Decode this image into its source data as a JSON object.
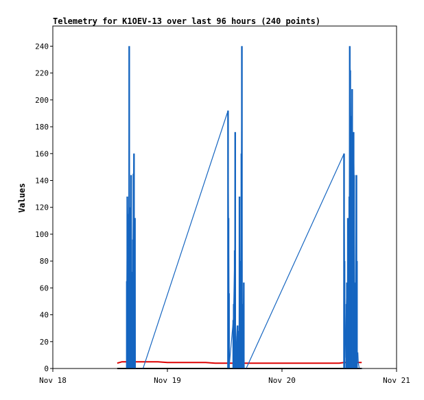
{
  "chart_data": {
    "type": "line",
    "title": "Telemetry for K1OEV-13 over last 96 hours (240 points)",
    "xlabel": "",
    "ylabel": "Values",
    "x_ticks": [
      "Nov 18",
      "Nov 19",
      "Nov 20",
      "Nov 21"
    ],
    "x_tick_hours": [
      0,
      24,
      48,
      72
    ],
    "xlim_hours": [
      0,
      72
    ],
    "y_ticks": [
      0,
      20,
      40,
      60,
      80,
      100,
      120,
      140,
      160,
      180,
      200,
      220,
      240
    ],
    "ylim": [
      0,
      255
    ],
    "grid": false,
    "legend": "none",
    "colors": {
      "blue": "#1565c0",
      "red": "#dd0000",
      "black": "#000000",
      "frame": "#000000"
    },
    "series": [
      {
        "style": "spikes",
        "color": "#1565c0",
        "x_hours": [
          15.5,
          15.6,
          15.7,
          15.8,
          15.9,
          16.0,
          16.1,
          16.2,
          16.3,
          16.4,
          16.5,
          16.6,
          16.7,
          16.8,
          16.9,
          17.0,
          17.1,
          17.2,
          17.3,
          17.4,
          17.5,
          17.6,
          17.7,
          17.8,
          17.9,
          18.0,
          18.1,
          18.2,
          18.3,
          18.4,
          18.5,
          18.6,
          18.7,
          18.8,
          18.9,
          36.7,
          36.8,
          36.9,
          37.0,
          37.8,
          37.9,
          38.1,
          38.2,
          38.3,
          38.4,
          38.5,
          38.6,
          38.7,
          38.8,
          38.9,
          39.0,
          39.1,
          39.2,
          39.3,
          39.4,
          39.5,
          39.6,
          39.7,
          39.8,
          39.9,
          40.0,
          40.1,
          40.2,
          40.3,
          40.4,
          40.5,
          61.0,
          61.1,
          61.2,
          61.5,
          61.6,
          61.7,
          61.8,
          61.9,
          62.0,
          62.1,
          62.2,
          62.3,
          62.4,
          62.5,
          62.6,
          62.7,
          62.8,
          62.9,
          63.0,
          63.1,
          63.2,
          63.3,
          63.4,
          63.5,
          63.6,
          63.7,
          63.8,
          63.9,
          64.0,
          64.1,
          64.2,
          64.3,
          64.4,
          64.5,
          64.6,
          64.7,
          64.8,
          64.9
        ],
        "values": [
          65,
          128,
          115,
          88,
          62,
          240,
          120,
          110,
          48,
          144,
          72,
          16,
          8,
          96,
          145,
          160,
          4,
          112,
          0,
          0,
          0,
          0,
          0,
          0,
          0,
          0,
          0,
          0,
          0,
          0,
          0,
          0,
          0,
          0,
          0,
          192,
          112,
          56,
          4,
          36,
          48,
          88,
          176,
          4,
          12,
          24,
          32,
          28,
          16,
          8,
          12,
          128,
          64,
          80,
          56,
          160,
          240,
          4,
          16,
          48,
          64,
          0,
          0,
          0,
          0,
          0,
          160,
          80,
          8,
          48,
          64,
          40,
          112,
          24,
          72,
          128,
          240,
          222,
          188,
          144,
          104,
          208,
          80,
          60,
          176,
          144,
          56,
          64,
          20,
          144,
          80,
          16,
          8,
          12,
          4,
          2,
          0,
          0,
          0,
          0,
          0,
          0,
          0,
          0
        ],
        "sticks": [
          [
            15.5,
            65
          ],
          [
            15.6,
            128
          ],
          [
            15.7,
            115
          ],
          [
            15.8,
            88
          ],
          [
            16.0,
            240
          ],
          [
            16.1,
            120
          ],
          [
            16.2,
            110
          ],
          [
            16.3,
            48
          ],
          [
            16.4,
            144
          ],
          [
            16.5,
            72
          ],
          [
            16.6,
            16
          ],
          [
            16.8,
            96
          ],
          [
            16.9,
            145
          ],
          [
            17.0,
            160
          ],
          [
            17.2,
            112
          ],
          [
            36.7,
            192
          ],
          [
            36.8,
            112
          ],
          [
            36.9,
            56
          ],
          [
            37.8,
            36
          ],
          [
            37.9,
            48
          ],
          [
            38.1,
            88
          ],
          [
            38.2,
            176
          ],
          [
            38.5,
            12
          ],
          [
            38.6,
            24
          ],
          [
            38.7,
            32
          ],
          [
            38.8,
            28
          ],
          [
            38.9,
            16
          ],
          [
            39.1,
            128
          ],
          [
            39.2,
            64
          ],
          [
            39.3,
            80
          ],
          [
            39.5,
            160
          ],
          [
            39.6,
            240
          ],
          [
            39.9,
            48
          ],
          [
            40.0,
            64
          ],
          [
            61.0,
            160
          ],
          [
            61.1,
            80
          ],
          [
            61.5,
            48
          ],
          [
            61.6,
            64
          ],
          [
            61.8,
            112
          ],
          [
            62.0,
            72
          ],
          [
            62.1,
            128
          ],
          [
            62.2,
            240
          ],
          [
            62.3,
            222
          ],
          [
            62.4,
            188
          ],
          [
            62.5,
            144
          ],
          [
            62.6,
            104
          ],
          [
            62.7,
            208
          ],
          [
            62.8,
            80
          ],
          [
            63.0,
            176
          ],
          [
            63.1,
            144
          ],
          [
            63.2,
            56
          ],
          [
            63.3,
            64
          ],
          [
            63.5,
            20
          ],
          [
            63.6,
            144
          ],
          [
            63.7,
            80
          ]
        ]
      },
      {
        "style": "line",
        "color": "#dd0000",
        "x_hours": [
          13.5,
          14,
          14.5,
          15,
          16,
          17,
          18,
          19,
          20,
          22,
          24,
          26,
          28,
          30,
          32,
          34,
          36,
          38,
          40,
          42,
          44,
          46,
          48,
          50,
          52,
          54,
          56,
          58,
          60,
          61,
          62,
          63,
          64,
          64.7
        ],
        "values": [
          4.0,
          4.5,
          5.0,
          5.0,
          5.0,
          5.0,
          5.0,
          5.0,
          5.0,
          5.0,
          4.5,
          4.5,
          4.5,
          4.5,
          4.5,
          4.0,
          4.0,
          4.0,
          4.0,
          4.0,
          4.0,
          4.0,
          4.0,
          4.0,
          4.0,
          4.0,
          4.0,
          4.0,
          4.0,
          4.5,
          4.5,
          4.5,
          4.5,
          4.5
        ]
      },
      {
        "style": "line",
        "color": "#000000",
        "x_hours": [
          13.5,
          64.7
        ],
        "values": [
          0,
          0
        ]
      }
    ]
  }
}
